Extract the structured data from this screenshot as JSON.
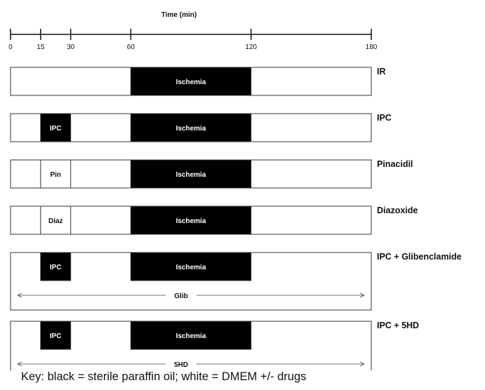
{
  "axis": {
    "title": "Time (min)",
    "min": 0,
    "max": 180,
    "ticks": [
      0,
      15,
      30,
      60,
      120,
      180
    ]
  },
  "protocols": [
    {
      "name": "IR",
      "segments": [
        {
          "start": 60,
          "end": 120,
          "fill": "black",
          "label": "Ischemia"
        }
      ]
    },
    {
      "name": "IPC",
      "segments": [
        {
          "start": 15,
          "end": 30,
          "fill": "black",
          "label": "IPC"
        },
        {
          "start": 60,
          "end": 120,
          "fill": "black",
          "label": "Ischemia"
        }
      ]
    },
    {
      "name": "Pinacidil",
      "segments": [
        {
          "start": 15,
          "end": 30,
          "fill": "white",
          "label": "Pin"
        },
        {
          "start": 60,
          "end": 120,
          "fill": "black",
          "label": "Ischemia"
        }
      ]
    },
    {
      "name": "Diazoxide",
      "segments": [
        {
          "start": 15,
          "end": 30,
          "fill": "white",
          "label": "Diaz"
        },
        {
          "start": 60,
          "end": 120,
          "fill": "black",
          "label": "Ischemia"
        }
      ]
    },
    {
      "name": "IPC + Glibenclamide",
      "segments": [
        {
          "start": 15,
          "end": 30,
          "fill": "black",
          "label": "IPC"
        },
        {
          "start": 60,
          "end": 120,
          "fill": "black",
          "label": "Ischemia"
        }
      ],
      "drug": "Glib"
    },
    {
      "name": "IPC + 5HD",
      "segments": [
        {
          "start": 15,
          "end": 30,
          "fill": "black",
          "label": "IPC"
        },
        {
          "start": 60,
          "end": 120,
          "fill": "black",
          "label": "Ischemia"
        }
      ],
      "drug": "5HD"
    }
  ],
  "key": "Key: black = sterile paraffin oil; white = DMEM +/- drugs",
  "colors": {
    "black": "#000000",
    "white": "#ffffff",
    "line": "#333333"
  }
}
